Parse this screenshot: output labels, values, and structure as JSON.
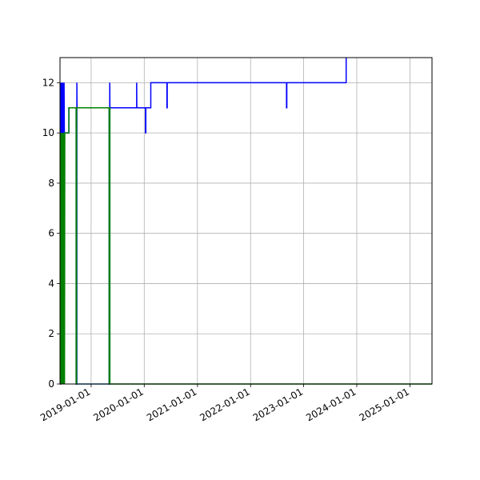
{
  "chart_data": {
    "type": "line",
    "title": "",
    "xlabel": "",
    "ylabel": "",
    "x_axis": "date",
    "xlim": [
      "2018-06-01",
      "2025-06-01"
    ],
    "ylim": [
      0,
      13
    ],
    "grid": true,
    "legend": "none",
    "x_ticks": [
      "2019-01-01",
      "2020-01-01",
      "2021-01-01",
      "2022-01-01",
      "2023-01-01",
      "2024-01-01",
      "2025-01-01"
    ],
    "y_ticks": [
      0,
      2,
      4,
      6,
      8,
      10,
      12
    ],
    "series": [
      {
        "color": "#0000ff",
        "points": [
          [
            "2018-06-01",
            0
          ],
          [
            "2018-06-05",
            0
          ],
          [
            "2018-06-05",
            12
          ],
          [
            "2018-06-07",
            0
          ],
          [
            "2018-06-08",
            12
          ],
          [
            "2018-06-10",
            0
          ],
          [
            "2018-06-11",
            12
          ],
          [
            "2018-06-13",
            0
          ],
          [
            "2018-06-14",
            12
          ],
          [
            "2018-06-16",
            0
          ],
          [
            "2018-06-17",
            12
          ],
          [
            "2018-06-19",
            0
          ],
          [
            "2018-06-20",
            12
          ],
          [
            "2018-06-22",
            0
          ],
          [
            "2018-06-23",
            12
          ],
          [
            "2018-06-25",
            0
          ],
          [
            "2018-06-26",
            12
          ],
          [
            "2018-06-28",
            0
          ],
          [
            "2018-06-29",
            12
          ],
          [
            "2018-07-01",
            10
          ],
          [
            "2018-08-01",
            10
          ],
          [
            "2018-08-01",
            11
          ],
          [
            "2018-09-20",
            11
          ],
          [
            "2018-09-20",
            0
          ],
          [
            "2018-09-25",
            0
          ],
          [
            "2018-09-25",
            12
          ],
          [
            "2018-09-26",
            11
          ],
          [
            "2019-05-05",
            11
          ],
          [
            "2019-05-05",
            0
          ],
          [
            "2019-05-09",
            0
          ],
          [
            "2019-05-09",
            12
          ],
          [
            "2019-05-10",
            11
          ],
          [
            "2019-11-10",
            11
          ],
          [
            "2019-11-10",
            12
          ],
          [
            "2019-11-11",
            11
          ],
          [
            "2020-01-10",
            11
          ],
          [
            "2020-01-10",
            10
          ],
          [
            "2020-01-12",
            10
          ],
          [
            "2020-01-12",
            11
          ],
          [
            "2020-02-15",
            11
          ],
          [
            "2020-02-15",
            12
          ],
          [
            "2020-06-05",
            12
          ],
          [
            "2020-06-05",
            11
          ],
          [
            "2020-06-07",
            11
          ],
          [
            "2020-06-07",
            12
          ],
          [
            "2022-09-05",
            12
          ],
          [
            "2022-09-05",
            11
          ],
          [
            "2022-09-07",
            11
          ],
          [
            "2022-09-07",
            12
          ],
          [
            "2023-10-20",
            12
          ],
          [
            "2023-10-20",
            13
          ]
        ]
      },
      {
        "color": "#2e86c1",
        "points": [
          [
            "2018-09-21",
            0
          ],
          [
            "2018-09-21",
            11
          ],
          [
            "2018-09-22",
            11
          ],
          [
            "2018-09-22",
            0
          ],
          [
            "2019-05-06",
            0
          ],
          [
            "2019-05-06",
            11
          ],
          [
            "2019-05-07",
            11
          ],
          [
            "2019-05-07",
            0
          ]
        ]
      },
      {
        "color": "#008000",
        "points": [
          [
            "2018-06-01",
            0
          ],
          [
            "2018-06-06",
            0
          ],
          [
            "2018-06-06",
            10
          ],
          [
            "2018-06-09",
            0
          ],
          [
            "2018-06-12",
            10
          ],
          [
            "2018-06-15",
            0
          ],
          [
            "2018-06-18",
            10
          ],
          [
            "2018-06-21",
            0
          ],
          [
            "2018-06-24",
            10
          ],
          [
            "2018-06-27",
            0
          ],
          [
            "2018-06-30",
            10
          ],
          [
            "2018-07-02",
            0
          ],
          [
            "2018-07-04",
            10
          ],
          [
            "2018-08-01",
            10
          ],
          [
            "2018-08-01",
            11
          ],
          [
            "2018-09-20",
            11
          ],
          [
            "2018-09-20",
            0
          ],
          [
            "2018-09-23",
            0
          ],
          [
            "2018-09-23",
            11
          ],
          [
            "2019-05-05",
            11
          ],
          [
            "2019-05-05",
            0
          ],
          [
            "2019-05-08",
            0
          ],
          [
            "2019-05-08",
            11
          ],
          [
            "2019-05-10",
            11
          ],
          [
            "2019-05-10",
            0
          ],
          [
            "2025-06-01",
            0
          ]
        ]
      }
    ]
  }
}
